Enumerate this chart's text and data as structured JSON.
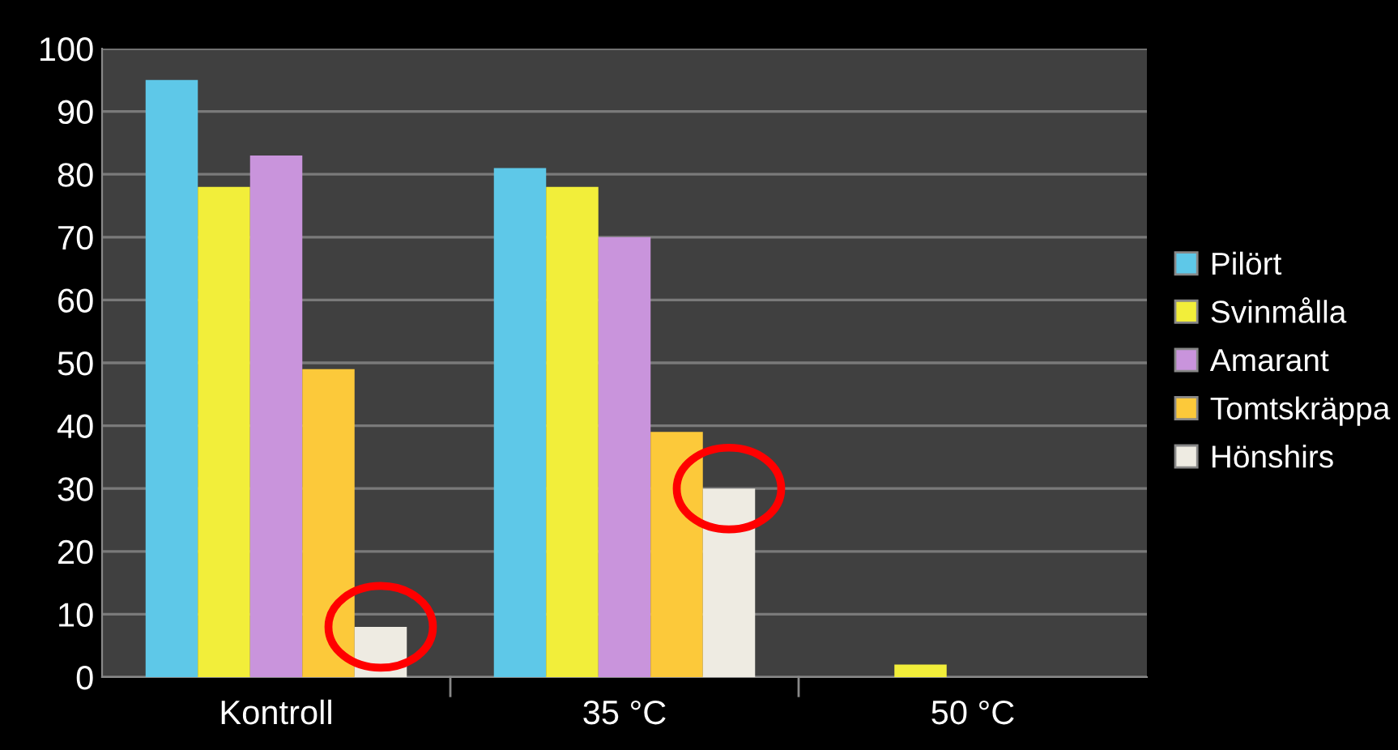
{
  "chart_data": {
    "type": "bar",
    "categories": [
      "Kontroll",
      "35 °C",
      "50 °C"
    ],
    "series": [
      {
        "name": "Pilört",
        "color": "#5ec8e8",
        "values": [
          95,
          81,
          0
        ]
      },
      {
        "name": "Svinmålla",
        "color": "#f2ee3a",
        "values": [
          78,
          78,
          2
        ]
      },
      {
        "name": "Amarant",
        "color": "#c994dc",
        "values": [
          83,
          70,
          0
        ]
      },
      {
        "name": "Tomtskräppa",
        "color": "#fcc93a",
        "values": [
          49,
          39,
          0
        ]
      },
      {
        "name": "Hönshirs",
        "color": "#eeebe2",
        "values": [
          8,
          30,
          0
        ]
      }
    ],
    "ylim": [
      0,
      100
    ],
    "yticks": [
      0,
      10,
      20,
      30,
      40,
      50,
      60,
      70,
      80,
      90,
      100
    ],
    "grid": "y",
    "legend": "right"
  }
}
